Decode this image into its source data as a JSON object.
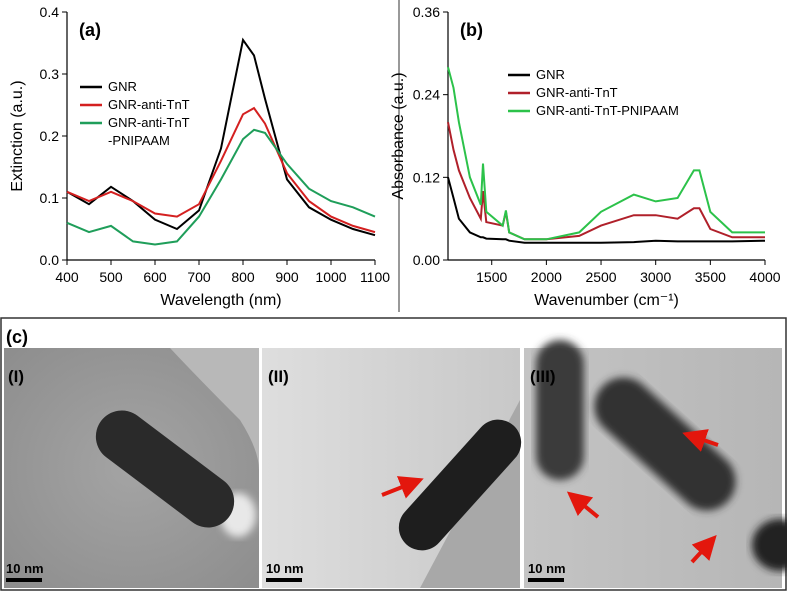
{
  "chart_data": [
    {
      "type": "line",
      "title": "(a)",
      "xlabel": "Wavelength (nm)",
      "ylabel": "Extinction (a.u.)",
      "x": [
        400,
        450,
        500,
        550,
        600,
        650,
        700,
        750,
        800,
        825,
        850,
        900,
        950,
        1000,
        1050,
        1100
      ],
      "series": [
        {
          "name": "GNR",
          "color": "#000000",
          "values": [
            0.11,
            0.09,
            0.118,
            0.095,
            0.065,
            0.05,
            0.08,
            0.18,
            0.355,
            0.33,
            0.26,
            0.13,
            0.085,
            0.065,
            0.05,
            0.04
          ]
        },
        {
          "name": "GNR-anti-TnT",
          "color": "#d42020",
          "values": [
            0.11,
            0.095,
            0.11,
            0.095,
            0.075,
            0.07,
            0.09,
            0.16,
            0.235,
            0.245,
            0.22,
            0.14,
            0.095,
            0.07,
            0.055,
            0.045
          ]
        },
        {
          "name": "GNR-anti-TnT\n-PNIPAAM",
          "color": "#1f9e5a",
          "values": [
            0.06,
            0.045,
            0.055,
            0.03,
            0.025,
            0.03,
            0.07,
            0.13,
            0.195,
            0.21,
            0.205,
            0.155,
            0.115,
            0.095,
            0.085,
            0.07
          ]
        }
      ],
      "xlim": [
        400,
        1100
      ],
      "xticks": [
        400,
        500,
        600,
        700,
        800,
        900,
        1000,
        1100
      ],
      "ylim": [
        0,
        0.4
      ],
      "yticks": [
        {
          "value": 0,
          "label": "0.0"
        },
        0.1,
        0.2,
        0.3,
        0.4
      ],
      "legend": "upper left"
    },
    {
      "type": "line",
      "title": "(b)",
      "xlabel": "Wavenumber (cm⁻¹)",
      "ylabel": "Absorbance (a.u.)",
      "x": [
        1100,
        1150,
        1200,
        1300,
        1400,
        1420,
        1450,
        1600,
        1630,
        1660,
        1800,
        2000,
        2300,
        2500,
        2800,
        3000,
        3200,
        3350,
        3400,
        3500,
        3700,
        4000
      ],
      "series": [
        {
          "name": "GNR",
          "color": "#000000",
          "values": [
            0.12,
            0.09,
            0.06,
            0.04,
            0.033,
            0.033,
            0.031,
            0.03,
            0.03,
            0.028,
            0.025,
            0.025,
            0.025,
            0.025,
            0.026,
            0.028,
            0.027,
            0.027,
            0.027,
            0.027,
            0.027,
            0.028
          ]
        },
        {
          "name": "GNR-anti-TnT",
          "color": "#b0202a",
          "values": [
            0.2,
            0.16,
            0.13,
            0.09,
            0.06,
            0.1,
            0.055,
            0.05,
            0.07,
            0.04,
            0.03,
            0.03,
            0.035,
            0.05,
            0.065,
            0.065,
            0.06,
            0.075,
            0.075,
            0.045,
            0.033,
            0.033
          ]
        },
        {
          "name": "GNR-anti-TnT-PNIPAAM",
          "color": "#2cc24a",
          "values": [
            0.28,
            0.25,
            0.2,
            0.12,
            0.08,
            0.14,
            0.07,
            0.05,
            0.072,
            0.04,
            0.03,
            0.03,
            0.04,
            0.07,
            0.095,
            0.085,
            0.09,
            0.13,
            0.13,
            0.07,
            0.04,
            0.04
          ]
        }
      ],
      "xlim": [
        1100,
        4000
      ],
      "xticks": [
        1500,
        2000,
        2500,
        3000,
        3500,
        4000
      ],
      "ylim": [
        0,
        0.36
      ],
      "yticks": [
        {
          "value": 0,
          "label": "0.00"
        },
        0.12,
        0.24,
        0.36
      ],
      "legend": "upper left"
    }
  ],
  "panel_c": {
    "label": "(c)",
    "images": [
      {
        "label": "(I)",
        "scale": "10 nm"
      },
      {
        "label": "(II)",
        "scale": "10 nm"
      },
      {
        "label": "(III)",
        "scale": "10 nm"
      }
    ]
  }
}
